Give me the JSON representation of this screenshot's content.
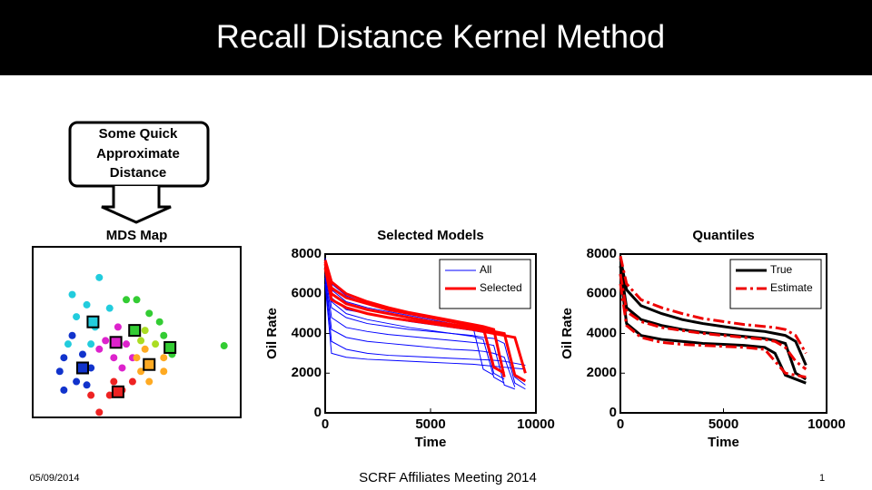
{
  "slide": {
    "title": "Recall Distance Kernel Method",
    "callout": [
      "Some Quick",
      "Approximate",
      "Distance"
    ],
    "footer": {
      "date": "05/09/2014",
      "center": "SCRF Affiliates Meeting 2014",
      "page": "1"
    }
  },
  "chart_data": [
    {
      "type": "scatter",
      "title": "MDS Map",
      "xlim": [
        0,
        10
      ],
      "ylim": [
        0,
        10
      ],
      "series": [
        {
          "color": "#22ccdd",
          "x": [
            3.2,
            1.9,
            2.6,
            3.7,
            2.1,
            3.0,
            2.8,
            1.7
          ],
          "y": [
            8.2,
            7.2,
            6.6,
            6.4,
            5.9,
            5.3,
            4.3,
            4.3
          ]
        },
        {
          "color": "#1133cc",
          "x": [
            1.9,
            1.5,
            2.4,
            1.3,
            2.8,
            2.1,
            1.5,
            2.6
          ],
          "y": [
            4.8,
            3.5,
            3.7,
            2.7,
            2.9,
            2.1,
            1.6,
            1.9
          ]
        },
        {
          "color": "#dd22cc",
          "x": [
            4.1,
            3.5,
            4.5,
            3.9,
            4.8,
            3.2,
            4.3
          ],
          "y": [
            5.3,
            4.5,
            4.3,
            3.5,
            3.5,
            4.0,
            2.9
          ]
        },
        {
          "color": "#ee2222",
          "x": [
            3.2,
            3.7,
            4.3,
            2.8,
            4.8,
            3.9
          ],
          "y": [
            0.3,
            1.3,
            1.6,
            1.3,
            2.1,
            2.1
          ]
        },
        {
          "color": "#ffaa22",
          "x": [
            5.4,
            6.3,
            5.2,
            6.3,
            5.6,
            5.0
          ],
          "y": [
            4.0,
            3.5,
            2.7,
            2.7,
            2.1,
            3.5
          ]
        },
        {
          "color": "#33cc33",
          "x": [
            4.5,
            5.0,
            6.1,
            6.3,
            6.7,
            5.6,
            9.2
          ],
          "y": [
            6.9,
            6.9,
            5.6,
            4.8,
            3.7,
            6.1,
            4.2
          ]
        },
        {
          "color": "#aadd22",
          "x": [
            5.4,
            5.2,
            5.9
          ],
          "y": [
            5.1,
            4.5,
            4.3
          ]
        }
      ],
      "medoids": {
        "x": [
          2.9,
          4.0,
          2.4,
          4.1,
          5.6,
          4.9,
          6.6
        ],
        "y": [
          5.6,
          4.4,
          2.9,
          1.5,
          3.1,
          5.1,
          4.1
        ],
        "colors": [
          "#22ccdd",
          "#dd22cc",
          "#1133cc",
          "#ee2222",
          "#ffaa22",
          "#33cc33",
          "#33cc33"
        ]
      }
    },
    {
      "type": "line",
      "title": "Selected Models",
      "x_label": "Time",
      "y_label": "Oil Rate",
      "xlim": [
        0,
        10000
      ],
      "ylim": [
        0,
        8000
      ],
      "xticks": [
        0,
        5000,
        10000
      ],
      "yticks": [
        0,
        2000,
        4000,
        6000,
        8000
      ],
      "legend": "upper right",
      "x": [
        0,
        300,
        1000,
        2000,
        3000,
        4000,
        5000,
        6000,
        7000,
        7500,
        8000,
        8500,
        9000,
        9500
      ],
      "series": [
        {
          "name": "All",
          "color": "#0000ff",
          "width": 1,
          "dash": "solid",
          "curves": [
            [
              7600,
              5600,
              5000,
              4700,
              4500,
              4300,
              4150,
              4000,
              3900,
              3800,
              3750,
              3500,
              1500,
              1200
            ],
            [
              7400,
              5300,
              4800,
              4500,
              4350,
              4200,
              4100,
              4000,
              3850,
              3700,
              1800,
              1500,
              null,
              null
            ],
            [
              7200,
              4800,
              4300,
              4100,
              3950,
              3850,
              3750,
              3650,
              3550,
              3500,
              3400,
              1400,
              1200,
              null
            ],
            [
              7000,
              4200,
              3800,
              3600,
              3500,
              3400,
              3300,
              3200,
              3150,
              3100,
              3000,
              2800,
              1300,
              null
            ],
            [
              6800,
              3600,
              3200,
              3000,
              2900,
              2850,
              2800,
              2750,
              2700,
              2680,
              2650,
              2600,
              2500,
              2400
            ],
            [
              7800,
              6200,
              5600,
              5300,
              5100,
              4900,
              4700,
              4500,
              4300,
              4200,
              2000,
              1700,
              null,
              null
            ],
            [
              7500,
              5800,
              5200,
              5000,
              4800,
              4600,
              4450,
              4300,
              4150,
              4050,
              4000,
              3900,
              1800,
              1400
            ],
            [
              6500,
              3000,
              2800,
              2700,
              2650,
              2600,
              2550,
              2500,
              2450,
              2400,
              2350,
              2300,
              2250,
              2200
            ],
            [
              7700,
              6500,
              5900,
              5500,
              5200,
              5000,
              4800,
              4600,
              4400,
              2200,
              1900,
              null,
              null,
              null
            ]
          ]
        },
        {
          "name": "Selected",
          "color": "#ff0000",
          "width": 3,
          "dash": "solid",
          "curves": [
            [
              7700,
              6600,
              6000,
              5600,
              5300,
              5050,
              4850,
              4650,
              4450,
              4350,
              4200,
              1800,
              null,
              null
            ],
            [
              7500,
              6000,
              5500,
              5200,
              5000,
              4800,
              4600,
              4450,
              4300,
              4200,
              4100,
              4000,
              1900,
              1600
            ],
            [
              7600,
              6300,
              5800,
              5500,
              5200,
              5000,
              4800,
              4600,
              4400,
              4300,
              2300,
              2000,
              null,
              null
            ],
            [
              7300,
              5700,
              5300,
              5000,
              4800,
              4650,
              4500,
              4350,
              4200,
              4100,
              4000,
              3900,
              3800,
              2000
            ]
          ]
        }
      ]
    },
    {
      "type": "line",
      "title": "Quantiles",
      "x_label": "Time",
      "y_label": "Oil Rate",
      "xlim": [
        0,
        10000
      ],
      "ylim": [
        0,
        8000
      ],
      "xticks": [
        0,
        5000,
        10000
      ],
      "yticks": [
        0,
        2000,
        4000,
        6000,
        8000
      ],
      "legend": "upper right",
      "x": [
        0,
        300,
        1000,
        2000,
        3000,
        4000,
        5000,
        6000,
        7000,
        7500,
        8000,
        8500,
        9000,
        9500
      ],
      "series": [
        {
          "name": "True",
          "color": "#000000",
          "width": 3,
          "dash": "solid",
          "curves": [
            [
              7000,
              4500,
              3900,
              3700,
              3600,
              3500,
              3450,
              3400,
              3300,
              3000,
              1900,
              1700,
              1500,
              null
            ],
            [
              7400,
              5300,
              4700,
              4400,
              4200,
              4050,
              3950,
              3850,
              3750,
              3650,
              3500,
              2000,
              1700,
              null
            ],
            [
              7800,
              6200,
              5400,
              5000,
              4700,
              4500,
              4350,
              4200,
              4100,
              4000,
              3900,
              3600,
              2400,
              null
            ]
          ]
        },
        {
          "name": "Estimate",
          "color": "#ee0000",
          "width": 3,
          "dash": "dashdot",
          "curves": [
            [
              6500,
              4400,
              3800,
              3550,
              3450,
              3400,
              3350,
              3300,
              3200,
              2600,
              2000,
              1900,
              1800,
              null
            ],
            [
              7000,
              5100,
              4600,
              4300,
              4150,
              4000,
              3900,
              3800,
              3700,
              3600,
              3300,
              2600,
              2200,
              null
            ],
            [
              7900,
              6500,
              5700,
              5300,
              5000,
              4750,
              4600,
              4450,
              4350,
              4300,
              4200,
              3900,
              3000,
              null
            ]
          ]
        }
      ]
    }
  ]
}
